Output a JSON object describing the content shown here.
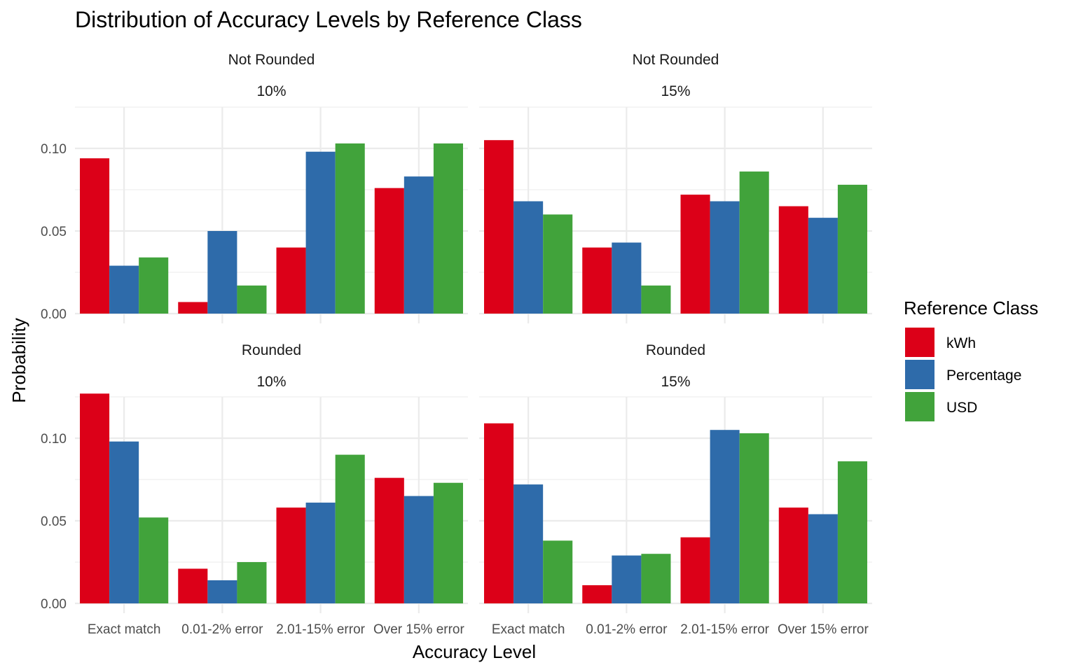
{
  "chart_data": {
    "type": "bar",
    "title": "Distribution of Accuracy Levels by Reference Class",
    "xlabel": "Accuracy Level",
    "ylabel": "Probability",
    "ylim": [
      0,
      0.125
    ],
    "yticks": [
      "0.00",
      "0.05",
      "0.10"
    ],
    "grid": true,
    "categories": [
      "Exact match",
      "0.01-2% error",
      "2.01-15% error",
      "Over 15% error"
    ],
    "legend": {
      "title": "Reference Class",
      "position": "right",
      "items": [
        {
          "name": "kWh",
          "color": "#DC0018"
        },
        {
          "name": "Percentage",
          "color": "#2E6BAA"
        },
        {
          "name": "USD",
          "color": "#41A33B"
        }
      ]
    },
    "panels": [
      {
        "strip_top": "Not Rounded",
        "strip_bottom": "10%",
        "series": [
          {
            "name": "kWh",
            "values": [
              0.094,
              0.007,
              0.04,
              0.076
            ]
          },
          {
            "name": "Percentage",
            "values": [
              0.029,
              0.05,
              0.098,
              0.083
            ]
          },
          {
            "name": "USD",
            "values": [
              0.034,
              0.017,
              0.103,
              0.103
            ]
          }
        ]
      },
      {
        "strip_top": "Not Rounded",
        "strip_bottom": "15%",
        "series": [
          {
            "name": "kWh",
            "values": [
              0.105,
              0.04,
              0.072,
              0.065
            ]
          },
          {
            "name": "Percentage",
            "values": [
              0.068,
              0.043,
              0.068,
              0.058
            ]
          },
          {
            "name": "USD",
            "values": [
              0.06,
              0.017,
              0.086,
              0.078
            ]
          }
        ]
      },
      {
        "strip_top": "Rounded",
        "strip_bottom": "10%",
        "series": [
          {
            "name": "kWh",
            "values": [
              0.127,
              0.021,
              0.058,
              0.076
            ]
          },
          {
            "name": "Percentage",
            "values": [
              0.098,
              0.014,
              0.061,
              0.065
            ]
          },
          {
            "name": "USD",
            "values": [
              0.052,
              0.025,
              0.09,
              0.073
            ]
          }
        ]
      },
      {
        "strip_top": "Rounded",
        "strip_bottom": "15%",
        "series": [
          {
            "name": "kWh",
            "values": [
              0.109,
              0.011,
              0.04,
              0.058
            ]
          },
          {
            "name": "Percentage",
            "values": [
              0.072,
              0.029,
              0.105,
              0.054
            ]
          },
          {
            "name": "USD",
            "values": [
              0.038,
              0.03,
              0.103,
              0.086
            ]
          }
        ]
      }
    ]
  }
}
